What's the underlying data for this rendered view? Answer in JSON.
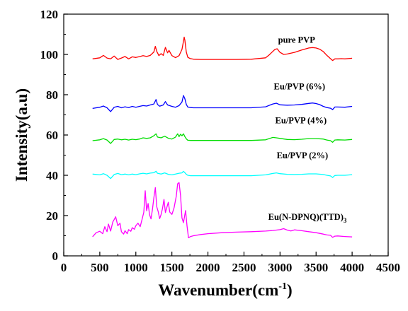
{
  "chart_data": {
    "type": "line",
    "xlabel": "Wavenumber(cm",
    "xlabel_sup": "-1",
    "xlabel_close": ")",
    "ylabel": "Intensity(a.u)",
    "xlim": [
      0,
      4500
    ],
    "ylim": [
      0,
      120
    ],
    "xticks": [
      0,
      500,
      1000,
      1500,
      2000,
      2500,
      3000,
      3500,
      4000,
      4500
    ],
    "yticks": [
      0,
      20,
      40,
      60,
      80,
      100,
      120
    ],
    "grid": false,
    "legend": "inline labels next to each curve",
    "series": [
      {
        "name": "pure PVP",
        "color": "#ff0000",
        "x": [
          400,
          500,
          550,
          600,
          650,
          700,
          750,
          800,
          850,
          900,
          950,
          1000,
          1050,
          1100,
          1150,
          1200,
          1250,
          1270,
          1290,
          1320,
          1350,
          1380,
          1410,
          1440,
          1460,
          1500,
          1550,
          1600,
          1640,
          1660,
          1670,
          1680,
          1700,
          1720,
          1750,
          1800,
          1900,
          2000,
          2200,
          2400,
          2600,
          2800,
          2850,
          2900,
          2930,
          2960,
          3000,
          3050,
          3100,
          3200,
          3300,
          3400,
          3450,
          3500,
          3550,
          3600,
          3650,
          3700,
          3730,
          3760,
          3800,
          3850,
          3900,
          4000
        ],
        "y": [
          97.8,
          98.3,
          99.5,
          98.2,
          97.8,
          99.2,
          97.5,
          98.2,
          99.0,
          97.8,
          98.8,
          98.5,
          98.9,
          99.4,
          99.0,
          99.5,
          101.2,
          104.0,
          101.5,
          99.4,
          100.4,
          99.5,
          103.5,
          100.8,
          102.0,
          99.4,
          98.4,
          99.4,
          102.5,
          106.5,
          108.6,
          107.0,
          101.2,
          98.6,
          98.0,
          97.6,
          97.5,
          97.5,
          97.5,
          97.5,
          97.6,
          98.3,
          99.8,
          101.5,
          102.5,
          102.8,
          101.0,
          100.0,
          100.2,
          101.0,
          102.2,
          103.2,
          103.4,
          103.2,
          102.6,
          101.4,
          99.5,
          97.9,
          97.0,
          97.8,
          97.8,
          97.9,
          97.8,
          98.1
        ]
      },
      {
        "name": "Eu/PVP (6%)",
        "color": "#0000ff",
        "x": [
          400,
          500,
          550,
          600,
          650,
          700,
          750,
          800,
          850,
          900,
          950,
          1000,
          1050,
          1100,
          1150,
          1200,
          1250,
          1280,
          1300,
          1330,
          1380,
          1410,
          1440,
          1500,
          1550,
          1600,
          1640,
          1660,
          1680,
          1700,
          1720,
          1760,
          1800,
          2000,
          2200,
          2400,
          2600,
          2800,
          2900,
          2950,
          3000,
          3100,
          3200,
          3300,
          3400,
          3450,
          3500,
          3550,
          3600,
          3650,
          3700,
          3730,
          3760,
          3800,
          3900,
          4000
        ],
        "y": [
          73.2,
          73.8,
          74.4,
          73.5,
          71.6,
          73.8,
          74.2,
          73.5,
          74.0,
          73.6,
          74.2,
          73.8,
          74.2,
          74.6,
          74.4,
          74.9,
          75.4,
          77.6,
          75.2,
          74.3,
          74.9,
          76.6,
          74.9,
          74.2,
          73.8,
          74.6,
          76.4,
          79.6,
          78.0,
          75.2,
          73.9,
          73.6,
          73.5,
          73.5,
          73.5,
          73.5,
          73.5,
          74.0,
          75.4,
          75.8,
          75.0,
          74.8,
          74.9,
          75.2,
          75.7,
          75.9,
          75.6,
          75.1,
          74.2,
          73.6,
          73.3,
          72.6,
          73.9,
          73.9,
          73.8,
          74.2
        ]
      },
      {
        "name": "Eu/PVP (4%)",
        "color": "#00dd00",
        "x": [
          400,
          500,
          550,
          600,
          650,
          700,
          750,
          800,
          850,
          900,
          950,
          1000,
          1050,
          1100,
          1150,
          1200,
          1250,
          1280,
          1300,
          1350,
          1400,
          1450,
          1500,
          1550,
          1580,
          1600,
          1620,
          1640,
          1660,
          1680,
          1700,
          1720,
          1760,
          1800,
          2000,
          2200,
          2400,
          2600,
          2800,
          2900,
          2950,
          3000,
          3100,
          3200,
          3300,
          3400,
          3500,
          3600,
          3650,
          3700,
          3730,
          3760,
          3800,
          3900,
          4000
        ],
        "y": [
          57.2,
          57.6,
          58.2,
          57.5,
          55.8,
          57.8,
          58.0,
          57.6,
          57.9,
          57.5,
          57.9,
          57.7,
          58.0,
          58.6,
          58.3,
          58.6,
          59.6,
          60.6,
          59.0,
          58.6,
          59.4,
          58.4,
          58.0,
          59.0,
          60.6,
          59.2,
          60.4,
          59.6,
          60.6,
          59.2,
          58.1,
          57.4,
          57.3,
          57.3,
          57.3,
          57.3,
          57.3,
          57.3,
          57.6,
          58.8,
          58.6,
          58.3,
          57.8,
          57.7,
          57.9,
          58.2,
          58.2,
          58.0,
          57.5,
          57.2,
          56.4,
          57.5,
          57.6,
          57.5,
          57.8
        ]
      },
      {
        "name": "Eu/PVP (2%)",
        "color": "#00ffff",
        "x": [
          400,
          500,
          550,
          600,
          650,
          700,
          750,
          800,
          850,
          900,
          950,
          1000,
          1050,
          1100,
          1150,
          1200,
          1250,
          1280,
          1300,
          1350,
          1400,
          1450,
          1500,
          1550,
          1600,
          1640,
          1660,
          1680,
          1700,
          1720,
          1760,
          1800,
          2000,
          2200,
          2400,
          2600,
          2800,
          2900,
          2950,
          3000,
          3100,
          3200,
          3300,
          3400,
          3500,
          3600,
          3650,
          3700,
          3730,
          3760,
          3800,
          3900,
          4000
        ],
        "y": [
          40.6,
          40.2,
          40.8,
          40.0,
          38.4,
          40.4,
          40.9,
          40.3,
          40.6,
          40.2,
          40.6,
          40.3,
          40.7,
          41.0,
          40.7,
          41.1,
          41.3,
          42.0,
          41.0,
          40.6,
          41.2,
          40.5,
          40.2,
          40.6,
          41.0,
          41.2,
          42.0,
          41.3,
          40.5,
          40.0,
          39.8,
          39.8,
          39.8,
          39.8,
          39.8,
          39.8,
          40.2,
          40.9,
          41.2,
          40.8,
          40.5,
          40.4,
          40.5,
          40.7,
          40.7,
          40.4,
          40.0,
          39.7,
          38.9,
          39.9,
          40.0,
          40.0,
          40.3
        ]
      },
      {
        "name": "Eu(N-DPNQ)(TTD)",
        "name_sub": "3",
        "color": "#ff00ff",
        "x": [
          400,
          450,
          500,
          540,
          570,
          600,
          620,
          650,
          680,
          700,
          720,
          750,
          780,
          800,
          830,
          850,
          880,
          900,
          930,
          950,
          980,
          1000,
          1030,
          1060,
          1090,
          1110,
          1130,
          1150,
          1170,
          1190,
          1210,
          1230,
          1250,
          1270,
          1290,
          1310,
          1330,
          1350,
          1370,
          1390,
          1410,
          1430,
          1450,
          1470,
          1500,
          1530,
          1560,
          1580,
          1600,
          1620,
          1640,
          1660,
          1690,
          1710,
          1730,
          1760,
          1800,
          1900,
          2000,
          2200,
          2400,
          2600,
          2800,
          2900,
          3000,
          3050,
          3100,
          3150,
          3200,
          3300,
          3400,
          3500,
          3600,
          3650,
          3700,
          3730,
          3760,
          3800,
          3900,
          4000
        ],
        "y": [
          9.5,
          11.5,
          12.2,
          11.0,
          14.5,
          12.0,
          15.8,
          12.3,
          16.8,
          18.0,
          19.4,
          15.0,
          16.2,
          12.0,
          10.8,
          12.5,
          11.0,
          13.0,
          12.2,
          14.0,
          13.2,
          15.0,
          16.2,
          14.5,
          18.6,
          21.6,
          32.3,
          22.4,
          26.0,
          20.5,
          18.4,
          23.0,
          28.8,
          33.9,
          24.4,
          22.0,
          18.5,
          20.5,
          23.5,
          28.0,
          21.5,
          24.0,
          26.6,
          21.8,
          20.6,
          23.8,
          29.5,
          35.8,
          36.4,
          30.0,
          18.8,
          16.5,
          22.5,
          15.0,
          9.0,
          9.6,
          10.0,
          10.6,
          11.0,
          11.5,
          11.8,
          12.0,
          12.3,
          12.6,
          13.0,
          13.5,
          12.8,
          12.4,
          12.9,
          12.5,
          12.0,
          11.5,
          10.8,
          10.4,
          10.2,
          9.2,
          9.8,
          9.9,
          9.6,
          9.4
        ]
      }
    ]
  }
}
